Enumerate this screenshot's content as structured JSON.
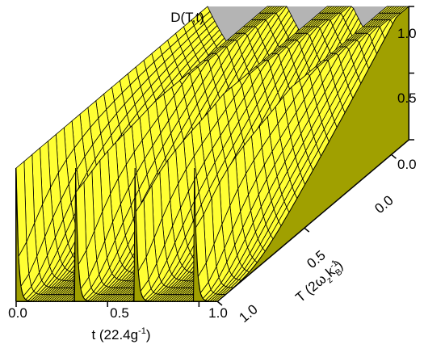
{
  "chart_data": {
    "type": "surface3d",
    "title": "D(T,t)",
    "xlabel": "t  (22.4g",
    "xlabel_sup": "-1",
    "xlabel_close": ")",
    "ylabel_T": "T  (2ω",
    "ylabel_sub_z": "z",
    "ylabel_k": "k",
    "ylabel_sub_B": "B",
    "ylabel_sup": "-1",
    "ylabel_close": ")",
    "x_ticks": [
      "0.0",
      "0.5",
      "1.0"
    ],
    "T_ticks": [
      "0.0",
      "0.5",
      "1.0"
    ],
    "z_ticks": [
      "0.0",
      "0.5",
      "1.0"
    ],
    "xlim": [
      0,
      1.1
    ],
    "Tlim": [
      0,
      1.1
    ],
    "zlim": [
      0,
      1
    ],
    "pulse_times": [
      0.0,
      0.325,
      0.65,
      0.975
    ],
    "surface_color": "#ffff33",
    "side_color": "#a0a000",
    "wall_color": "#b4b4b4",
    "line_color": "#000000"
  }
}
